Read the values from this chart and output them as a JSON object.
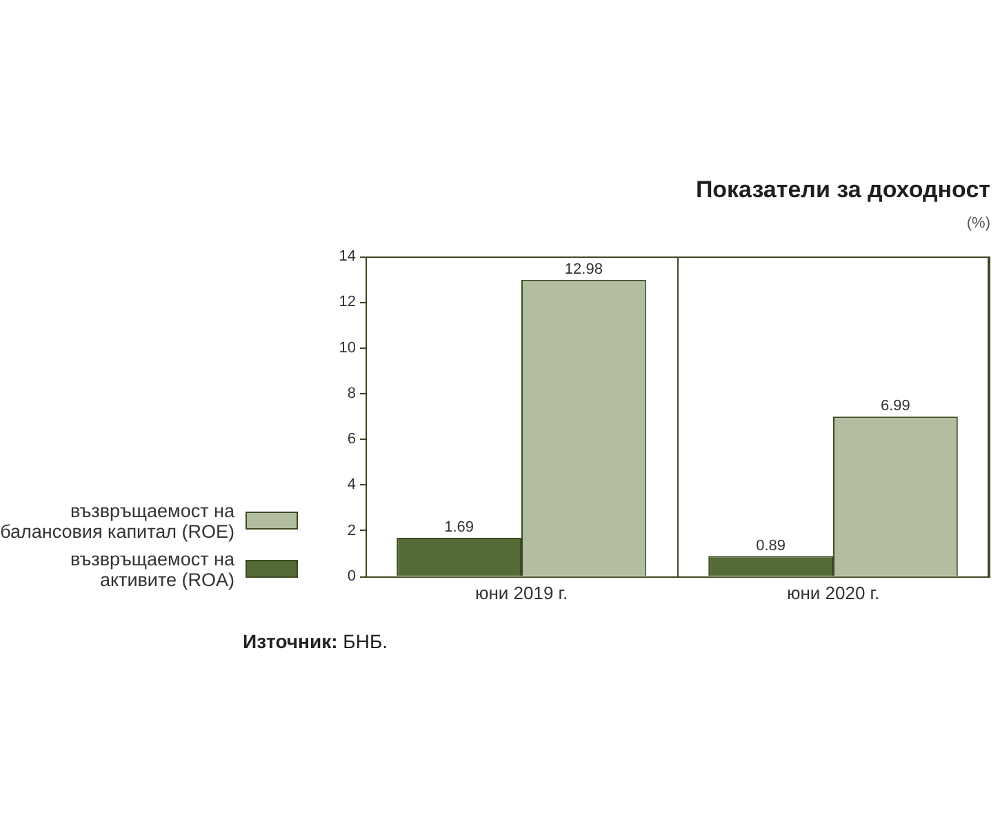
{
  "chart_data": {
    "type": "bar",
    "title": "Показатели за доходност",
    "subtitle": "(%)",
    "categories": [
      "юни 2019 г.",
      "юни 2020 г."
    ],
    "series": [
      {
        "name": "възвръщаемост на активите (ROA)",
        "color": "#556b35",
        "values": [
          1.69,
          0.89
        ]
      },
      {
        "name": "възвръщаемост на балансовия капитал (ROE)",
        "color": "#b3bea0",
        "values": [
          12.98,
          6.99
        ]
      }
    ],
    "ylim": [
      0,
      14
    ],
    "yticks": [
      0,
      2,
      4,
      6,
      8,
      10,
      12,
      14
    ],
    "grid": "x",
    "legend": "left",
    "data_labels": true,
    "annotations": [
      "Източник: БНБ."
    ]
  }
}
